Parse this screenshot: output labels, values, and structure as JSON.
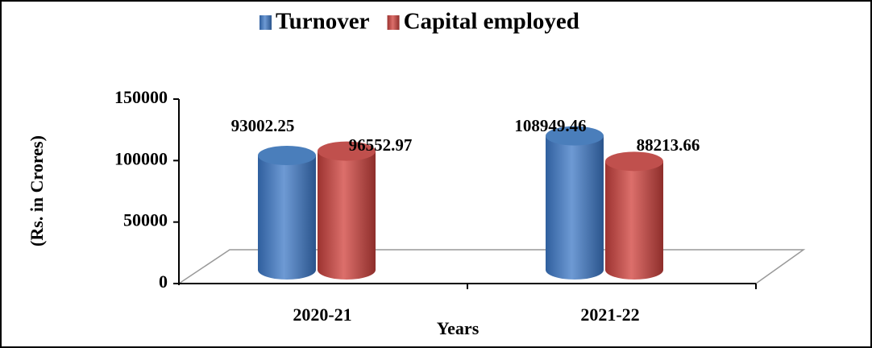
{
  "chart_data": {
    "type": "bar",
    "x_label": "Years",
    "y_label": "(Rs. in Crores)",
    "categories": [
      "2020-21",
      "2021-22"
    ],
    "series": [
      {
        "name": "Turnover",
        "color": "#4a7ebb",
        "values": [
          93002.25,
          108949.46
        ]
      },
      {
        "name": "Capital employed",
        "color": "#c0504d",
        "values": [
          96552.97,
          88213.66
        ]
      }
    ],
    "ylim": [
      0,
      150000
    ],
    "yticks": [
      0,
      50000,
      100000,
      150000
    ],
    "legend": "top",
    "grid": false
  }
}
